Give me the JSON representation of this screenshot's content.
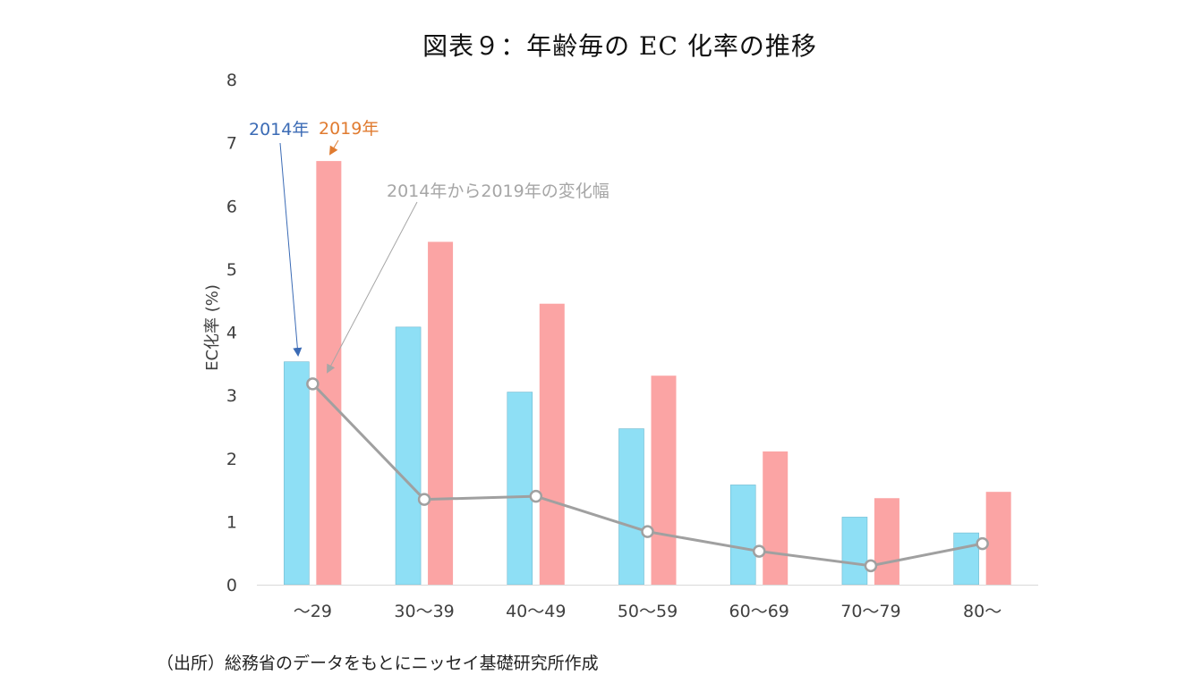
{
  "title": "図表９：年齢毎の EC 化率の推移",
  "source": "（出所）総務省のデータをもとにニッセイ基礎研究所作成",
  "annotations": {
    "label_2014": "2014年",
    "label_2019": "2019年",
    "label_change": "2014年から2019年の変化幅"
  },
  "colors": {
    "bar_2014": "#8EDFF5",
    "bar_2014_edge": "#6FB9CF",
    "bar_2019": "#FBA4A4",
    "line_change": "#A0A0A0",
    "annot_2014": "#3B6BB5",
    "annot_2019": "#E07B30",
    "annot_change": "#A6A6A6"
  },
  "chart_data": {
    "type": "bar",
    "title": "図表９：年齢毎の EC 化率の推移",
    "ylabel": "EC化率 (%)",
    "xlabel": "",
    "ylim": [
      0,
      8
    ],
    "yticks": [
      0,
      1,
      2,
      3,
      4,
      5,
      6,
      7,
      8
    ],
    "grid": false,
    "categories": [
      "～29",
      "30～39",
      "40～49",
      "50～59",
      "60～69",
      "70～79",
      "80～"
    ],
    "series": [
      {
        "name": "2014年",
        "kind": "bar",
        "values": [
          3.53,
          4.08,
          3.05,
          2.47,
          1.58,
          1.07,
          0.82
        ]
      },
      {
        "name": "2019年",
        "kind": "bar",
        "values": [
          6.71,
          5.43,
          4.45,
          3.31,
          2.11,
          1.37,
          1.47
        ]
      },
      {
        "name": "2014年から2019年の変化幅",
        "kind": "line",
        "values": [
          3.18,
          1.35,
          1.4,
          0.84,
          0.53,
          0.3,
          0.65
        ]
      }
    ]
  }
}
